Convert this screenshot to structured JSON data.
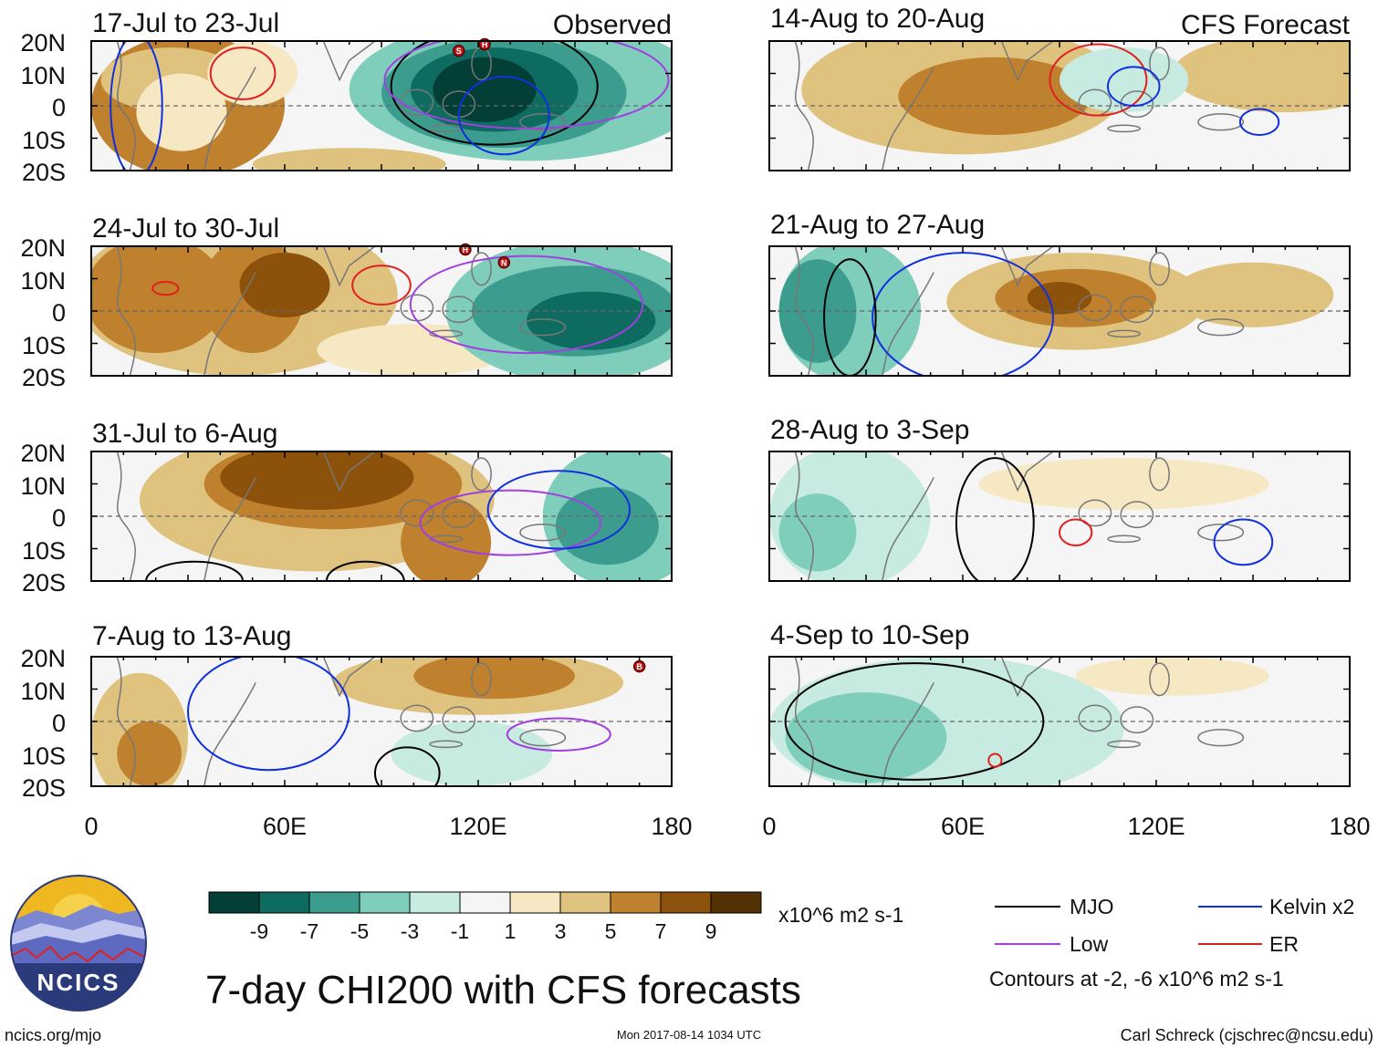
{
  "chart_data": {
    "type": "heatmap",
    "title": "7-day CHI200 with CFS forecasts",
    "units": "x10^6 m2 s-1",
    "observed_label": "Observed",
    "forecast_label": "CFS Forecast",
    "x_range": [
      0,
      180
    ],
    "y_range": [
      -20,
      20
    ],
    "x_ticks": [
      "0",
      "60E",
      "120E",
      "180"
    ],
    "y_ticks": [
      "20N",
      "10N",
      "0",
      "10S",
      "20S"
    ],
    "colorbar": {
      "labels": [
        "-9",
        "-7",
        "-5",
        "-3",
        "-1",
        "1",
        "3",
        "5",
        "7",
        "9"
      ],
      "colors": [
        "#033f36",
        "#0d6b5f",
        "#3c9d8f",
        "#7fcdbb",
        "#c7ebe1",
        "#f5f5f5",
        "#f6e8c3",
        "#dfc27d",
        "#bf812d",
        "#8c510a",
        "#543005"
      ]
    },
    "contour_levels": "Contours at -2, -6 x10^6 m2 s-1",
    "legend": [
      {
        "label": "MJO",
        "color": "#000000"
      },
      {
        "label": "Kelvin x2",
        "color": "#1030e0"
      },
      {
        "label": "Low",
        "color": "#a040e0"
      },
      {
        "label": "ER",
        "color": "#e02020"
      }
    ],
    "panels": [
      {
        "id": "obs-1",
        "column": "observed",
        "period": "17-Jul to 23-Jul",
        "blobs": [
          {
            "x": 30,
            "y": 0,
            "rx": 30,
            "ry": 22,
            "level": 3
          },
          {
            "x": 25,
            "y": 8,
            "rx": 22,
            "ry": 10,
            "level": 2
          },
          {
            "x": 28,
            "y": -2,
            "rx": 14,
            "ry": 12,
            "level": 1
          },
          {
            "x": 50,
            "y": 10,
            "rx": 14,
            "ry": 10,
            "level": 1
          },
          {
            "x": 80,
            "y": -18,
            "rx": 30,
            "ry": 5,
            "level": 2
          },
          {
            "x": 135,
            "y": 5,
            "rx": 55,
            "ry": 22,
            "level": -2
          },
          {
            "x": 128,
            "y": 4,
            "rx": 38,
            "ry": 17,
            "level": -3
          },
          {
            "x": 125,
            "y": 5,
            "rx": 26,
            "ry": 13,
            "level": -4
          },
          {
            "x": 122,
            "y": 5,
            "rx": 16,
            "ry": 10,
            "level": -5
          }
        ],
        "contours": [
          {
            "color": "MJO",
            "x": 125,
            "y": 6,
            "rx": 32,
            "ry": 18
          },
          {
            "color": "Low",
            "x": 135,
            "y": 8,
            "rx": 44,
            "ry": 15
          },
          {
            "color": "Kelvin",
            "x": 128,
            "y": -3,
            "rx": 14,
            "ry": 12
          },
          {
            "color": "ER",
            "x": 47,
            "y": 10,
            "rx": 10,
            "ry": 8
          },
          {
            "color": "Kelvin",
            "x": 14,
            "y": 0,
            "rx": 8,
            "ry": 22
          }
        ],
        "storms": [
          {
            "letter": "S",
            "x": 114,
            "y": 17
          },
          {
            "letter": "H",
            "x": 122,
            "y": 19
          }
        ]
      },
      {
        "id": "obs-2",
        "column": "observed",
        "period": "24-Jul to 30-Jul",
        "blobs": [
          {
            "x": 45,
            "y": 5,
            "rx": 50,
            "ry": 25,
            "level": 2
          },
          {
            "x": 20,
            "y": 5,
            "rx": 22,
            "ry": 18,
            "level": 3
          },
          {
            "x": 50,
            "y": 5,
            "rx": 16,
            "ry": 18,
            "level": 3
          },
          {
            "x": 60,
            "y": 8,
            "rx": 14,
            "ry": 10,
            "level": 4
          },
          {
            "x": 100,
            "y": -12,
            "rx": 30,
            "ry": 8,
            "level": 1
          },
          {
            "x": 150,
            "y": 0,
            "rx": 40,
            "ry": 22,
            "level": -2
          },
          {
            "x": 150,
            "y": 0,
            "rx": 32,
            "ry": 14,
            "level": -3
          },
          {
            "x": 155,
            "y": -3,
            "rx": 20,
            "ry": 9,
            "level": -4
          }
        ],
        "contours": [
          {
            "color": "Low",
            "x": 135,
            "y": 2,
            "rx": 36,
            "ry": 15
          },
          {
            "color": "ER",
            "x": 90,
            "y": 8,
            "rx": 9,
            "ry": 6
          },
          {
            "color": "ER",
            "x": 23,
            "y": 7,
            "rx": 4,
            "ry": 2
          }
        ],
        "storms": [
          {
            "letter": "H",
            "x": 116,
            "y": 19
          },
          {
            "letter": "N",
            "x": 128,
            "y": 15
          }
        ]
      },
      {
        "id": "obs-3",
        "column": "observed",
        "period": "31-Jul to 6-Aug",
        "blobs": [
          {
            "x": 70,
            "y": 5,
            "rx": 55,
            "ry": 22,
            "level": 2
          },
          {
            "x": 75,
            "y": 10,
            "rx": 40,
            "ry": 14,
            "level": 3
          },
          {
            "x": 70,
            "y": 12,
            "rx": 30,
            "ry": 10,
            "level": 4
          },
          {
            "x": 110,
            "y": -8,
            "rx": 14,
            "ry": 14,
            "level": 3
          },
          {
            "x": 165,
            "y": 0,
            "rx": 25,
            "ry": 22,
            "level": -2
          },
          {
            "x": 160,
            "y": -3,
            "rx": 16,
            "ry": 12,
            "level": -3
          }
        ],
        "contours": [
          {
            "color": "Low",
            "x": 130,
            "y": -2,
            "rx": 28,
            "ry": 10
          },
          {
            "color": "Kelvin",
            "x": 145,
            "y": 2,
            "rx": 22,
            "ry": 12
          },
          {
            "color": "MJO",
            "x": 32,
            "y": -20,
            "rx": 15,
            "ry": 6
          },
          {
            "color": "MJO",
            "x": 85,
            "y": -20,
            "rx": 12,
            "ry": 6
          }
        ],
        "storms": []
      },
      {
        "id": "obs-4",
        "column": "observed",
        "period": "7-Aug to 13-Aug",
        "blobs": [
          {
            "x": 15,
            "y": -5,
            "rx": 15,
            "ry": 20,
            "level": 2
          },
          {
            "x": 18,
            "y": -10,
            "rx": 10,
            "ry": 10,
            "level": 3
          },
          {
            "x": 120,
            "y": 12,
            "rx": 45,
            "ry": 10,
            "level": 2
          },
          {
            "x": 125,
            "y": 14,
            "rx": 25,
            "ry": 7,
            "level": 3
          },
          {
            "x": 118,
            "y": -10,
            "rx": 25,
            "ry": 10,
            "level": -1
          }
        ],
        "contours": [
          {
            "color": "Low",
            "x": 145,
            "y": -4,
            "rx": 16,
            "ry": 5
          },
          {
            "color": "Kelvin",
            "x": 55,
            "y": 3,
            "rx": 25,
            "ry": 18
          },
          {
            "color": "MJO",
            "x": 98,
            "y": -16,
            "rx": 10,
            "ry": 8
          }
        ],
        "storms": [
          {
            "letter": "B",
            "x": 170,
            "y": 17
          }
        ]
      },
      {
        "id": "fcst-1",
        "column": "forecast",
        "period": "14-Aug to 20-Aug",
        "blobs": [
          {
            "x": 60,
            "y": 5,
            "rx": 50,
            "ry": 20,
            "level": 2
          },
          {
            "x": 70,
            "y": 3,
            "rx": 30,
            "ry": 12,
            "level": 3
          },
          {
            "x": 160,
            "y": 10,
            "rx": 35,
            "ry": 12,
            "level": 2
          },
          {
            "x": 110,
            "y": 8,
            "rx": 20,
            "ry": 10,
            "level": -1
          }
        ],
        "contours": [
          {
            "color": "ER",
            "x": 102,
            "y": 8,
            "rx": 15,
            "ry": 11
          },
          {
            "color": "Kelvin",
            "x": 113,
            "y": 6,
            "rx": 8,
            "ry": 6
          },
          {
            "color": "Kelvin",
            "x": 152,
            "y": -5,
            "rx": 6,
            "ry": 4
          }
        ],
        "storms": []
      },
      {
        "id": "fcst-2",
        "column": "forecast",
        "period": "21-Aug to 27-Aug",
        "blobs": [
          {
            "x": 25,
            "y": 0,
            "rx": 22,
            "ry": 22,
            "level": -2
          },
          {
            "x": 15,
            "y": 0,
            "rx": 12,
            "ry": 16,
            "level": -3
          },
          {
            "x": 95,
            "y": 3,
            "rx": 40,
            "ry": 15,
            "level": 2
          },
          {
            "x": 95,
            "y": 4,
            "rx": 25,
            "ry": 9,
            "level": 3
          },
          {
            "x": 90,
            "y": 4,
            "rx": 10,
            "ry": 5,
            "level": 4
          },
          {
            "x": 150,
            "y": 5,
            "rx": 25,
            "ry": 10,
            "level": 2
          }
        ],
        "contours": [
          {
            "color": "Kelvin",
            "x": 60,
            "y": -2,
            "rx": 28,
            "ry": 20
          },
          {
            "color": "MJO",
            "x": 25,
            "y": -2,
            "rx": 8,
            "ry": 18
          }
        ],
        "storms": []
      },
      {
        "id": "fcst-3",
        "column": "forecast",
        "period": "28-Aug to 3-Sep",
        "blobs": [
          {
            "x": 25,
            "y": 0,
            "rx": 25,
            "ry": 22,
            "level": -1
          },
          {
            "x": 15,
            "y": -5,
            "rx": 12,
            "ry": 12,
            "level": -2
          },
          {
            "x": 110,
            "y": 10,
            "rx": 45,
            "ry": 8,
            "level": 1
          }
        ],
        "contours": [
          {
            "color": "ER",
            "x": 95,
            "y": -5,
            "rx": 5,
            "ry": 4
          },
          {
            "color": "Kelvin",
            "x": 147,
            "y": -8,
            "rx": 9,
            "ry": 7
          },
          {
            "color": "MJO",
            "x": 70,
            "y": -2,
            "rx": 12,
            "ry": 20
          }
        ],
        "storms": []
      },
      {
        "id": "fcst-4",
        "column": "forecast",
        "period": "4-Sep to 10-Sep",
        "blobs": [
          {
            "x": 55,
            "y": -2,
            "rx": 55,
            "ry": 22,
            "level": -1
          },
          {
            "x": 30,
            "y": -5,
            "rx": 25,
            "ry": 14,
            "level": -2
          },
          {
            "x": 125,
            "y": 14,
            "rx": 30,
            "ry": 6,
            "level": 1
          }
        ],
        "contours": [
          {
            "color": "MJO",
            "x": 45,
            "y": 0,
            "rx": 40,
            "ry": 18
          },
          {
            "color": "ER",
            "x": 70,
            "y": -12,
            "rx": 2,
            "ry": 2
          }
        ],
        "storms": []
      }
    ]
  },
  "logo": {
    "text": "NCICS"
  },
  "footer": {
    "website": "ncics.org/mjo",
    "timestamp": "Mon 2017-08-14 1034 UTC",
    "credit": "Carl Schreck (cjschrec@ncsu.edu)"
  }
}
